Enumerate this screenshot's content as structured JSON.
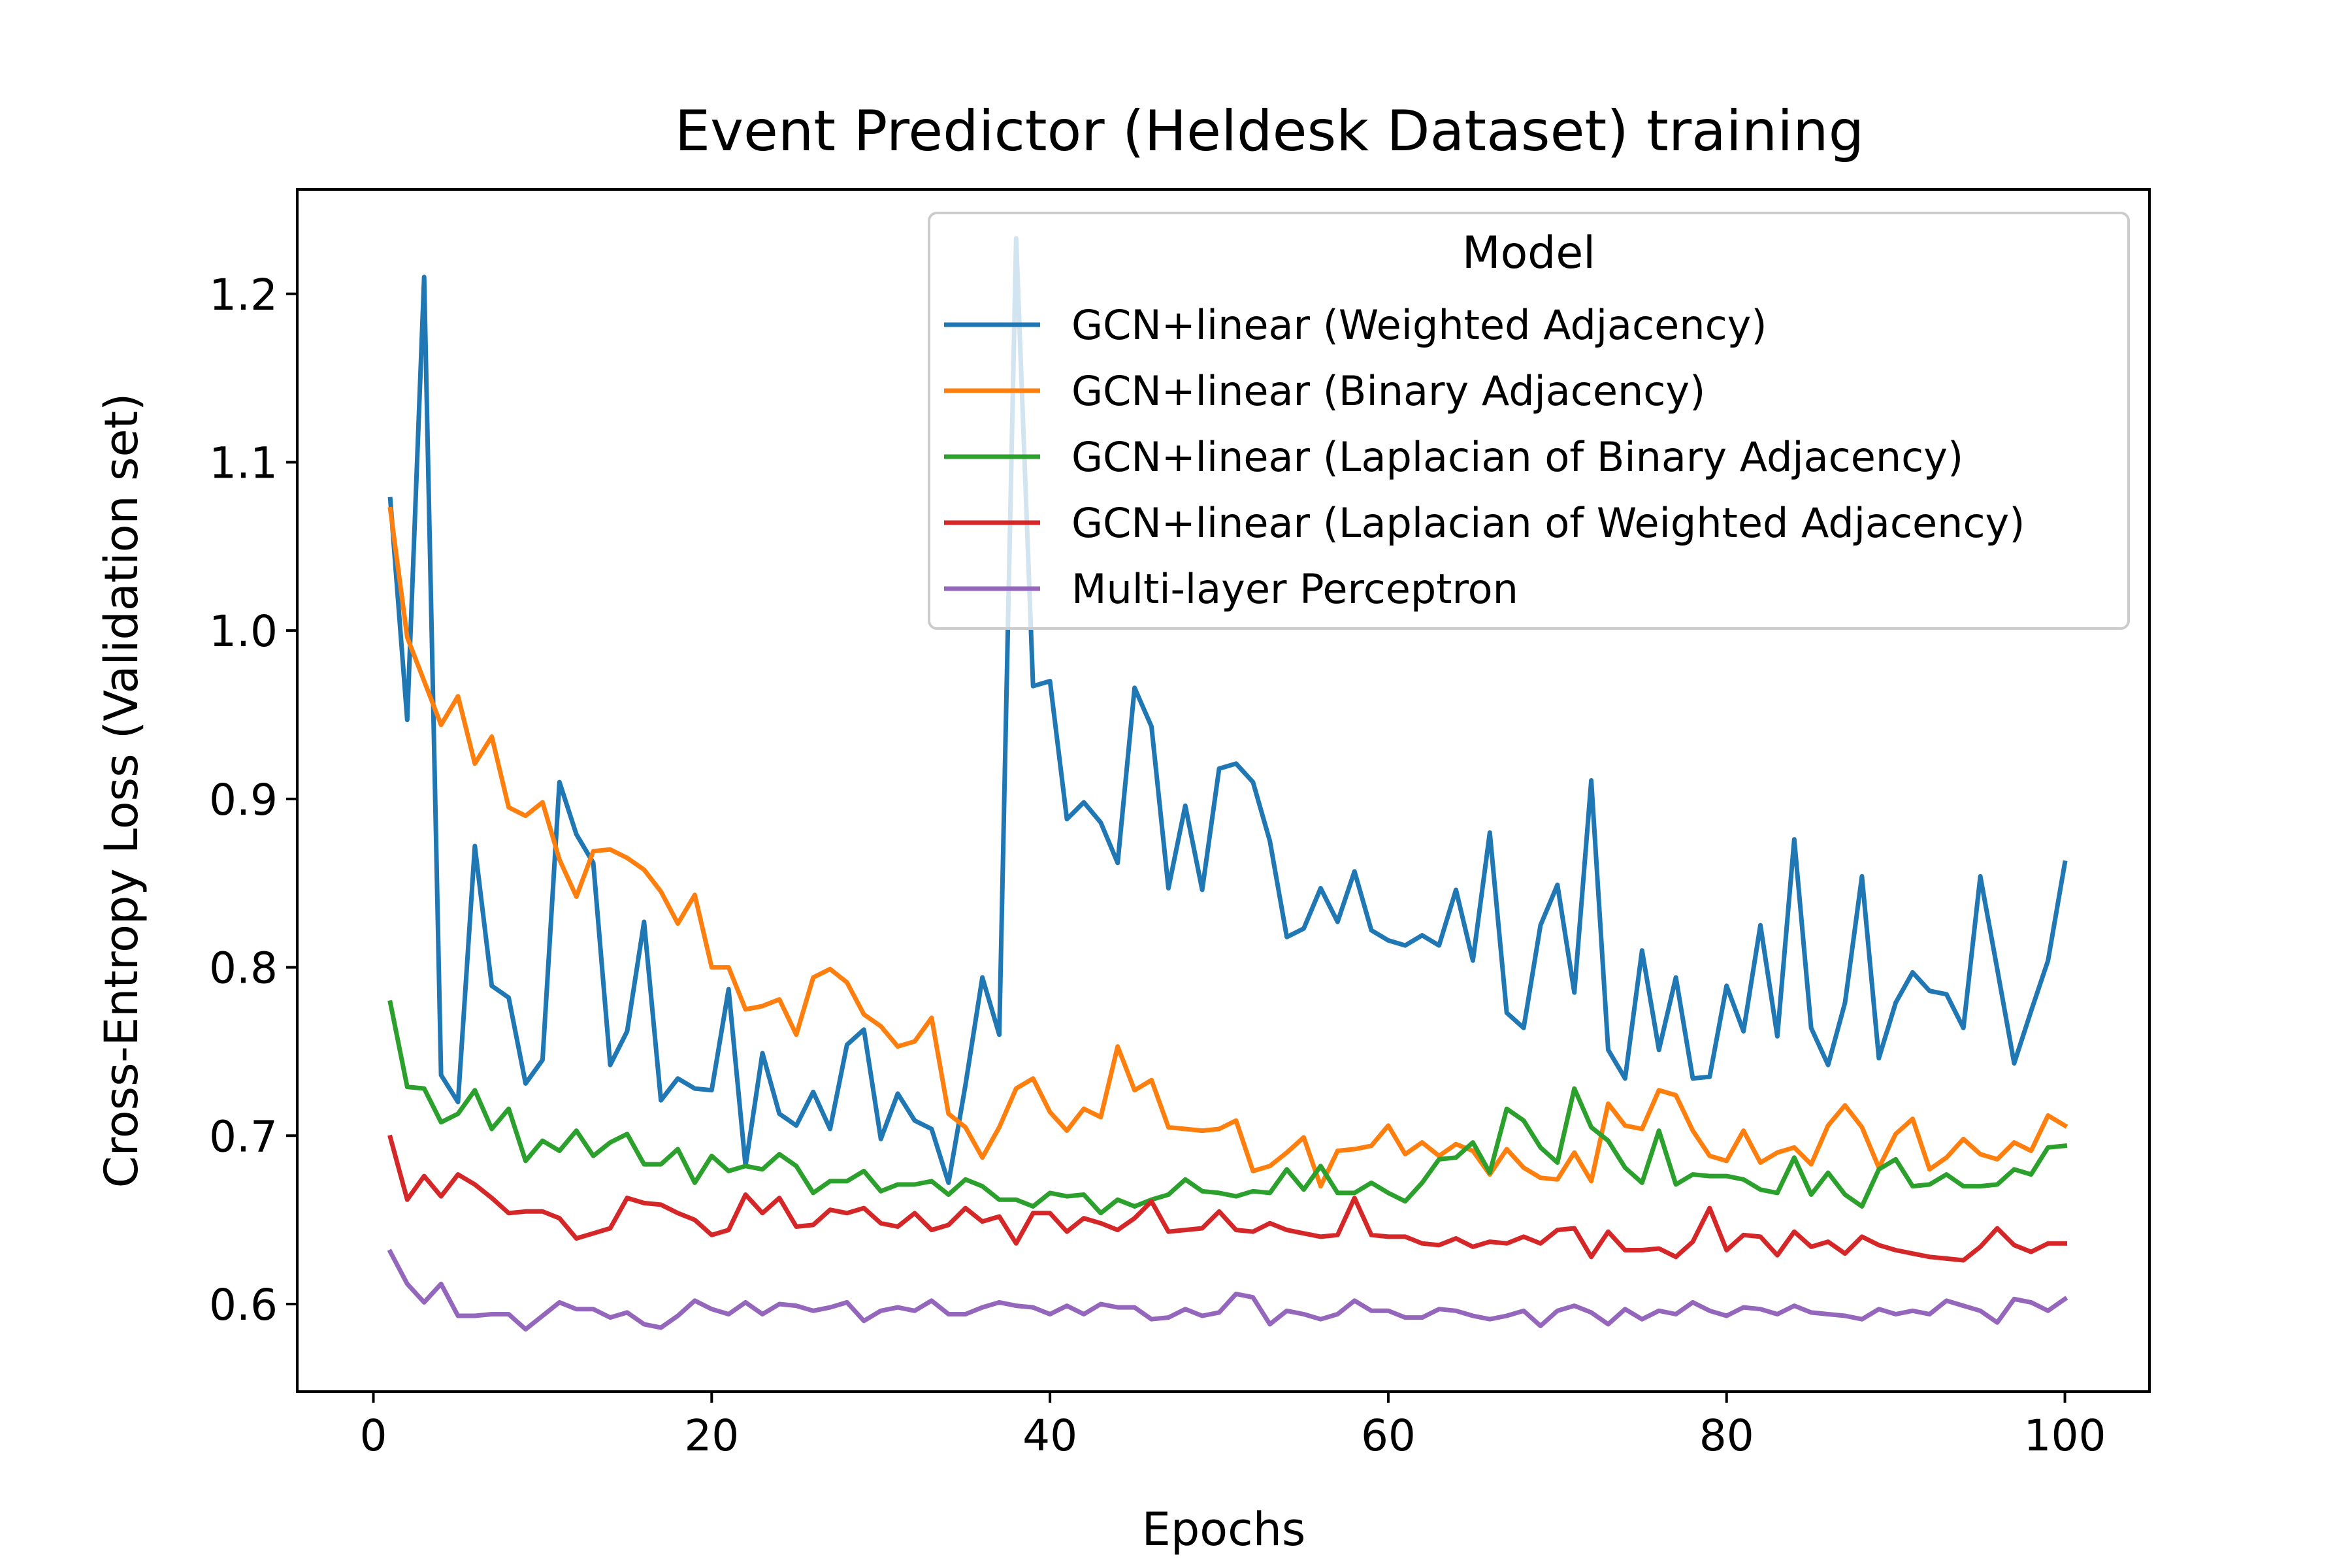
{
  "chart_data": {
    "type": "line",
    "title": "Event Predictor (Heldesk Dataset) training",
    "xlabel": "Epochs",
    "ylabel": "Cross-Entropy Loss (Validation set)",
    "xlim": [
      -4.5,
      105
    ],
    "ylim": [
      0.548,
      1.262
    ],
    "xticks": [
      0,
      20,
      40,
      60,
      80,
      100
    ],
    "yticks": [
      0.6,
      0.7,
      0.8,
      0.9,
      1.0,
      1.1,
      1.2
    ],
    "xtick_labels": [
      "0",
      "20",
      "40",
      "60",
      "80",
      "100"
    ],
    "ytick_labels": [
      "0.6",
      "0.7",
      "0.8",
      "0.9",
      "1.0",
      "1.1",
      "1.2"
    ],
    "grid": false,
    "legend": {
      "title": "Model",
      "placement": "upper right"
    },
    "x": [
      1,
      2,
      3,
      4,
      5,
      6,
      7,
      8,
      9,
      10,
      11,
      12,
      13,
      14,
      15,
      16,
      17,
      18,
      19,
      20,
      21,
      22,
      23,
      24,
      25,
      26,
      27,
      28,
      29,
      30,
      31,
      32,
      33,
      34,
      35,
      36,
      37,
      38,
      39,
      40,
      41,
      42,
      43,
      44,
      45,
      46,
      47,
      48,
      49,
      50,
      51,
      52,
      53,
      54,
      55,
      56,
      57,
      58,
      59,
      60,
      61,
      62,
      63,
      64,
      65,
      66,
      67,
      68,
      69,
      70,
      71,
      72,
      73,
      74,
      75,
      76,
      77,
      78,
      79,
      80,
      81,
      82,
      83,
      84,
      85,
      86,
      87,
      88,
      89,
      90,
      91,
      92,
      93,
      94,
      95,
      96,
      97,
      98,
      99,
      100
    ],
    "series": [
      {
        "name": "GCN+linear (Weighted Adjacency)",
        "color": "#1f77b4",
        "values": [
          1.078,
          0.947,
          1.21,
          0.736,
          0.72,
          0.872,
          0.789,
          0.782,
          0.731,
          0.745,
          0.91,
          0.879,
          0.862,
          0.742,
          0.762,
          0.827,
          0.721,
          0.734,
          0.728,
          0.727,
          0.787,
          0.682,
          0.749,
          0.713,
          0.706,
          0.726,
          0.704,
          0.754,
          0.763,
          0.698,
          0.725,
          0.709,
          0.704,
          0.672,
          0.73,
          0.794,
          0.76,
          1.233,
          0.967,
          0.97,
          0.888,
          0.898,
          0.886,
          0.862,
          0.966,
          0.943,
          0.847,
          0.896,
          0.846,
          0.918,
          0.921,
          0.91,
          0.875,
          0.818,
          0.823,
          0.847,
          0.827,
          0.857,
          0.822,
          0.816,
          0.813,
          0.819,
          0.813,
          0.846,
          0.804,
          0.88,
          0.773,
          0.764,
          0.825,
          0.849,
          0.785,
          0.911,
          0.751,
          0.734,
          0.81,
          0.751,
          0.794,
          0.734,
          0.735,
          0.789,
          0.762,
          0.825,
          0.759,
          0.876,
          0.764,
          0.742,
          0.779,
          0.854,
          0.746,
          0.779,
          0.797,
          0.786,
          0.784,
          0.764,
          0.854,
          0.799,
          0.743,
          0.774,
          0.804,
          0.862
        ]
      },
      {
        "name": "GCN+linear (Binary Adjacency)",
        "color": "#ff7f0e",
        "values": [
          1.072,
          0.996,
          0.97,
          0.944,
          0.961,
          0.921,
          0.937,
          0.895,
          0.89,
          0.898,
          0.864,
          0.842,
          0.869,
          0.87,
          0.865,
          0.858,
          0.845,
          0.826,
          0.843,
          0.8,
          0.8,
          0.775,
          0.777,
          0.781,
          0.76,
          0.794,
          0.799,
          0.791,
          0.772,
          0.765,
          0.753,
          0.756,
          0.77,
          0.713,
          0.705,
          0.687,
          0.705,
          0.728,
          0.734,
          0.714,
          0.703,
          0.716,
          0.711,
          0.753,
          0.727,
          0.733,
          0.705,
          0.704,
          0.703,
          0.704,
          0.709,
          0.679,
          0.682,
          0.69,
          0.699,
          0.67,
          0.691,
          0.692,
          0.694,
          0.706,
          0.689,
          0.696,
          0.688,
          0.695,
          0.691,
          0.677,
          0.692,
          0.681,
          0.675,
          0.674,
          0.69,
          0.673,
          0.719,
          0.706,
          0.704,
          0.727,
          0.724,
          0.703,
          0.688,
          0.685,
          0.703,
          0.684,
          0.69,
          0.693,
          0.683,
          0.706,
          0.718,
          0.705,
          0.681,
          0.701,
          0.71,
          0.68,
          0.687,
          0.698,
          0.689,
          0.686,
          0.696,
          0.691,
          0.712,
          0.706
        ]
      },
      {
        "name": "GCN+linear (Laplacian of Binary Adjacency)",
        "color": "#2ca02c",
        "values": [
          0.779,
          0.729,
          0.728,
          0.708,
          0.713,
          0.727,
          0.704,
          0.716,
          0.685,
          0.697,
          0.691,
          0.703,
          0.688,
          0.696,
          0.701,
          0.683,
          0.683,
          0.692,
          0.672,
          0.688,
          0.679,
          0.682,
          0.68,
          0.689,
          0.682,
          0.666,
          0.673,
          0.673,
          0.679,
          0.667,
          0.671,
          0.671,
          0.673,
          0.665,
          0.674,
          0.67,
          0.662,
          0.662,
          0.658,
          0.666,
          0.664,
          0.665,
          0.654,
          0.662,
          0.658,
          0.662,
          0.665,
          0.674,
          0.667,
          0.666,
          0.664,
          0.667,
          0.666,
          0.68,
          0.668,
          0.682,
          0.666,
          0.666,
          0.672,
          0.666,
          0.661,
          0.672,
          0.686,
          0.687,
          0.696,
          0.678,
          0.716,
          0.709,
          0.693,
          0.684,
          0.728,
          0.705,
          0.697,
          0.681,
          0.672,
          0.703,
          0.671,
          0.677,
          0.676,
          0.676,
          0.674,
          0.668,
          0.666,
          0.687,
          0.665,
          0.678,
          0.665,
          0.658,
          0.68,
          0.686,
          0.67,
          0.671,
          0.677,
          0.67,
          0.67,
          0.671,
          0.68,
          0.677,
          0.693,
          0.694
        ]
      },
      {
        "name": "GCN+linear (Laplacian of Weighted Adjacency)",
        "color": "#d62728",
        "values": [
          0.699,
          0.662,
          0.676,
          0.664,
          0.677,
          0.671,
          0.663,
          0.654,
          0.655,
          0.655,
          0.651,
          0.639,
          0.642,
          0.645,
          0.663,
          0.66,
          0.659,
          0.654,
          0.65,
          0.641,
          0.644,
          0.665,
          0.654,
          0.663,
          0.646,
          0.647,
          0.656,
          0.654,
          0.657,
          0.648,
          0.646,
          0.654,
          0.644,
          0.647,
          0.657,
          0.649,
          0.652,
          0.636,
          0.654,
          0.654,
          0.643,
          0.651,
          0.648,
          0.644,
          0.651,
          0.661,
          0.643,
          0.644,
          0.645,
          0.655,
          0.644,
          0.643,
          0.648,
          0.644,
          0.642,
          0.64,
          0.641,
          0.663,
          0.641,
          0.64,
          0.64,
          0.636,
          0.635,
          0.639,
          0.634,
          0.637,
          0.636,
          0.64,
          0.636,
          0.644,
          0.645,
          0.628,
          0.643,
          0.632,
          0.632,
          0.633,
          0.628,
          0.637,
          0.657,
          0.632,
          0.641,
          0.64,
          0.629,
          0.643,
          0.634,
          0.637,
          0.63,
          0.64,
          0.635,
          0.632,
          0.63,
          0.628,
          0.627,
          0.626,
          0.634,
          0.645,
          0.635,
          0.631,
          0.636,
          0.636
        ]
      },
      {
        "name": "Multi-layer Perceptron",
        "color": "#9467bd",
        "values": [
          0.631,
          0.612,
          0.601,
          0.612,
          0.593,
          0.593,
          0.594,
          0.594,
          0.585,
          0.593,
          0.601,
          0.597,
          0.597,
          0.592,
          0.595,
          0.588,
          0.586,
          0.593,
          0.602,
          0.597,
          0.594,
          0.601,
          0.594,
          0.6,
          0.599,
          0.596,
          0.598,
          0.601,
          0.59,
          0.596,
          0.598,
          0.596,
          0.602,
          0.594,
          0.594,
          0.598,
          0.601,
          0.599,
          0.598,
          0.594,
          0.599,
          0.594,
          0.6,
          0.598,
          0.598,
          0.591,
          0.592,
          0.597,
          0.593,
          0.595,
          0.606,
          0.604,
          0.588,
          0.596,
          0.594,
          0.591,
          0.594,
          0.602,
          0.596,
          0.596,
          0.592,
          0.592,
          0.597,
          0.596,
          0.593,
          0.591,
          0.593,
          0.596,
          0.587,
          0.596,
          0.599,
          0.595,
          0.588,
          0.597,
          0.591,
          0.596,
          0.594,
          0.601,
          0.596,
          0.593,
          0.598,
          0.597,
          0.594,
          0.599,
          0.595,
          0.594,
          0.593,
          0.591,
          0.597,
          0.594,
          0.596,
          0.594,
          0.602,
          0.599,
          0.596,
          0.589,
          0.603,
          0.601,
          0.596,
          0.603
        ]
      }
    ]
  }
}
